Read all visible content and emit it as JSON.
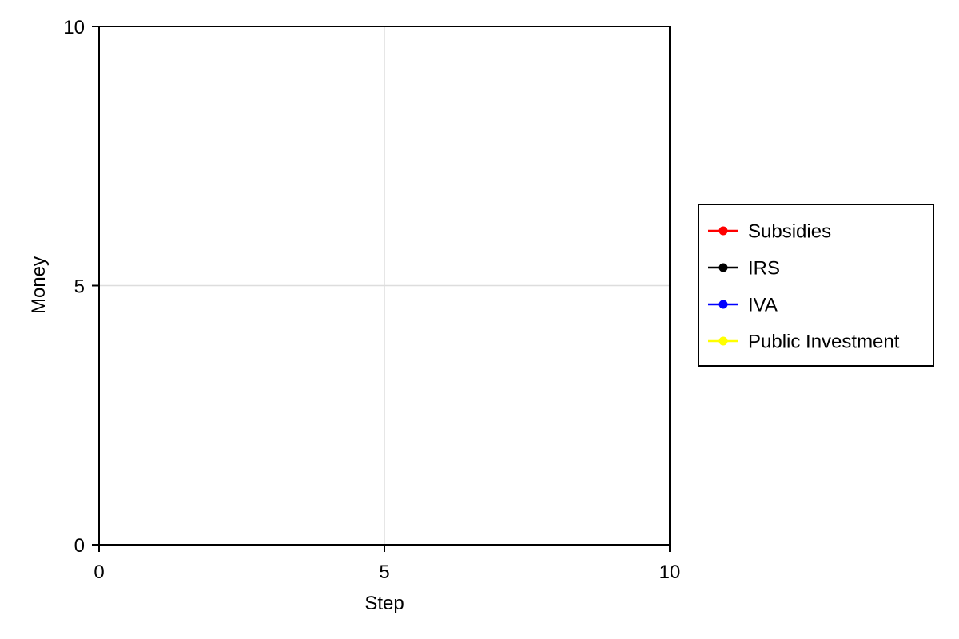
{
  "chart_data": {
    "type": "line",
    "title": "",
    "xlabel": "Step",
    "ylabel": "Money",
    "xlim": [
      0,
      10
    ],
    "ylim": [
      0,
      10
    ],
    "xticks": [
      0,
      5,
      10
    ],
    "yticks": [
      0,
      5,
      10
    ],
    "grid": true,
    "legend_position": "right",
    "series": [
      {
        "name": "Subsidies",
        "color": "#ff0000",
        "x": [],
        "y": []
      },
      {
        "name": "IRS",
        "color": "#000000",
        "x": [],
        "y": []
      },
      {
        "name": "IVA",
        "color": "#0000ff",
        "x": [],
        "y": []
      },
      {
        "name": "Public Investment",
        "color": "#ffff00",
        "x": [],
        "y": []
      }
    ]
  }
}
